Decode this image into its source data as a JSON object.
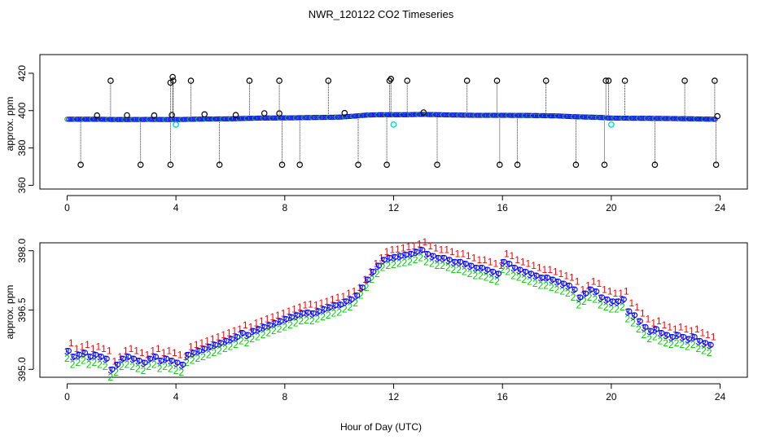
{
  "chart_data": [
    {
      "type": "scatter",
      "title": "NWR_120122  CO2 Timeseries",
      "xlabel": "",
      "ylabel": "approx. ppm",
      "xlim": [
        -1,
        25
      ],
      "ylim": [
        358,
        430
      ],
      "xticks": [
        0,
        4,
        8,
        12,
        16,
        20,
        24
      ],
      "yticks": [
        360,
        380,
        400,
        420
      ],
      "baseline_hours": [
        0.0,
        1.0,
        2.0,
        3.0,
        4.0,
        5.0,
        6.0,
        7.0,
        8.0,
        9.0,
        10.0,
        10.5,
        11.0,
        11.5,
        12.0,
        12.5,
        13.0,
        14.0,
        15.0,
        16.0,
        17.0,
        18.0,
        18.5,
        19.0,
        19.5,
        20.0,
        21.0,
        22.0,
        23.0,
        23.8
      ],
      "baseline_ppm": [
        395.4,
        395.4,
        395.2,
        395.3,
        395.2,
        395.5,
        395.6,
        396.0,
        396.1,
        396.3,
        396.5,
        397.0,
        397.6,
        397.8,
        397.8,
        397.8,
        398.0,
        397.7,
        397.5,
        397.5,
        397.4,
        397.2,
        396.8,
        396.6,
        396.4,
        396.0,
        395.9,
        395.8,
        395.6,
        395.4
      ],
      "high_outliers": [
        {
          "x": 1.6,
          "y": 416
        },
        {
          "x": 3.8,
          "y": 415
        },
        {
          "x": 3.88,
          "y": 418
        },
        {
          "x": 3.9,
          "y": 416
        },
        {
          "x": 4.55,
          "y": 416
        },
        {
          "x": 6.7,
          "y": 416
        },
        {
          "x": 7.8,
          "y": 416
        },
        {
          "x": 9.6,
          "y": 416
        },
        {
          "x": 11.85,
          "y": 416
        },
        {
          "x": 11.9,
          "y": 417
        },
        {
          "x": 12.5,
          "y": 416
        },
        {
          "x": 14.7,
          "y": 416
        },
        {
          "x": 15.8,
          "y": 416
        },
        {
          "x": 17.6,
          "y": 416
        },
        {
          "x": 19.8,
          "y": 416
        },
        {
          "x": 19.9,
          "y": 416
        },
        {
          "x": 20.5,
          "y": 416
        },
        {
          "x": 22.7,
          "y": 416
        },
        {
          "x": 23.8,
          "y": 416
        }
      ],
      "low_outliers": [
        {
          "x": 0.5,
          "y": 371
        },
        {
          "x": 2.7,
          "y": 371
        },
        {
          "x": 3.8,
          "y": 371
        },
        {
          "x": 5.6,
          "y": 371
        },
        {
          "x": 7.9,
          "y": 371
        },
        {
          "x": 8.55,
          "y": 371
        },
        {
          "x": 10.7,
          "y": 371
        },
        {
          "x": 11.75,
          "y": 371
        },
        {
          "x": 13.6,
          "y": 371
        },
        {
          "x": 15.9,
          "y": 371
        },
        {
          "x": 16.55,
          "y": 371
        },
        {
          "x": 18.7,
          "y": 371
        },
        {
          "x": 19.75,
          "y": 371
        },
        {
          "x": 21.6,
          "y": 371
        },
        {
          "x": 23.85,
          "y": 371
        }
      ],
      "near_outliers": [
        {
          "x": 1.1,
          "y": 397.4
        },
        {
          "x": 2.2,
          "y": 397.5
        },
        {
          "x": 3.2,
          "y": 397.4
        },
        {
          "x": 3.85,
          "y": 397.6
        },
        {
          "x": 5.05,
          "y": 398
        },
        {
          "x": 6.2,
          "y": 397.6
        },
        {
          "x": 7.25,
          "y": 398.6
        },
        {
          "x": 7.8,
          "y": 398.5
        },
        {
          "x": 10.2,
          "y": 398.7
        },
        {
          "x": 13.1,
          "y": 399
        },
        {
          "x": 23.9,
          "y": 397
        }
      ],
      "cyan_points": [
        {
          "x": 4.0,
          "y": 392.5
        },
        {
          "x": 12.0,
          "y": 392.5
        },
        {
          "x": 20.0,
          "y": 392.5
        }
      ]
    },
    {
      "type": "scatter",
      "title": "",
      "xlabel": "Hour of Day (UTC)",
      "ylabel": "approx. ppm",
      "xlim": [
        -1,
        25
      ],
      "ylim": [
        394.8,
        398.2
      ],
      "xticks": [
        0,
        4,
        8,
        12,
        16,
        20,
        24
      ],
      "yticks": [
        395.0,
        396.5,
        398.0
      ],
      "ytick_labels": [
        "395.0",
        "396.5",
        "398.0"
      ],
      "series": [
        {
          "name": "1",
          "symbol": "1",
          "color": "#ff0000",
          "offset": 0.22
        },
        {
          "name": "2",
          "symbol": "2",
          "color": "#00cc00",
          "offset": -0.18
        },
        {
          "name": "3",
          "symbol": "3",
          "color": "#0000ff",
          "offset": 0.0
        },
        {
          "name": "o",
          "symbol": "o",
          "color": "#0000ff",
          "offset": 0.0
        }
      ],
      "hours": [
        0.0,
        0.2,
        0.4,
        0.6,
        0.8,
        1.0,
        1.2,
        1.4,
        1.6,
        1.8,
        2.0,
        2.2,
        2.4,
        2.6,
        2.8,
        3.0,
        3.2,
        3.4,
        3.6,
        3.8,
        4.0,
        4.2,
        4.4,
        4.6,
        4.8,
        5.0,
        5.2,
        5.4,
        5.6,
        5.8,
        6.0,
        6.2,
        6.4,
        6.6,
        6.8,
        7.0,
        7.2,
        7.4,
        7.6,
        7.8,
        8.0,
        8.2,
        8.4,
        8.6,
        8.8,
        9.0,
        9.2,
        9.4,
        9.6,
        9.8,
        10.0,
        10.2,
        10.4,
        10.6,
        10.8,
        11.0,
        11.2,
        11.4,
        11.6,
        11.8,
        12.0,
        12.2,
        12.4,
        12.6,
        12.8,
        13.0,
        13.2,
        13.4,
        13.6,
        13.8,
        14.0,
        14.2,
        14.4,
        14.6,
        14.8,
        15.0,
        15.2,
        15.4,
        15.6,
        15.8,
        16.0,
        16.2,
        16.4,
        16.6,
        16.8,
        17.0,
        17.2,
        17.4,
        17.6,
        17.8,
        18.0,
        18.2,
        18.4,
        18.6,
        18.8,
        19.0,
        19.2,
        19.4,
        19.6,
        19.8,
        20.0,
        20.2,
        20.4,
        20.6,
        20.8,
        21.0,
        21.2,
        21.4,
        21.6,
        21.8,
        22.0,
        22.2,
        22.4,
        22.6,
        22.8,
        23.0,
        23.2,
        23.4,
        23.6
      ],
      "values": [
        395.45,
        395.3,
        395.35,
        395.4,
        395.3,
        395.35,
        395.3,
        395.25,
        394.98,
        395.1,
        395.25,
        395.3,
        395.25,
        395.2,
        395.15,
        395.25,
        395.3,
        395.2,
        395.25,
        395.2,
        395.15,
        395.1,
        395.35,
        395.4,
        395.45,
        395.5,
        395.55,
        395.6,
        395.65,
        395.7,
        395.75,
        395.8,
        395.9,
        395.85,
        395.95,
        396.0,
        396.05,
        396.1,
        396.15,
        396.2,
        396.25,
        396.3,
        396.35,
        396.4,
        396.42,
        396.4,
        396.45,
        396.5,
        396.55,
        396.6,
        396.62,
        396.7,
        396.75,
        396.85,
        397.05,
        397.25,
        397.45,
        397.6,
        397.75,
        397.8,
        397.82,
        397.85,
        397.88,
        397.9,
        397.95,
        398.0,
        397.9,
        397.85,
        397.8,
        397.8,
        397.75,
        397.7,
        397.7,
        397.65,
        397.6,
        397.55,
        397.55,
        397.5,
        397.45,
        397.4,
        397.7,
        397.65,
        397.55,
        397.5,
        397.45,
        397.4,
        397.35,
        397.3,
        397.3,
        397.25,
        397.2,
        397.15,
        397.1,
        397.0,
        396.8,
        396.9,
        397.0,
        396.95,
        396.8,
        396.75,
        396.7,
        396.7,
        396.75,
        396.45,
        396.35,
        396.2,
        396.05,
        395.95,
        396.0,
        395.9,
        395.85,
        395.8,
        395.85,
        395.8,
        395.75,
        395.8,
        395.7,
        395.65,
        395.6
      ]
    }
  ]
}
